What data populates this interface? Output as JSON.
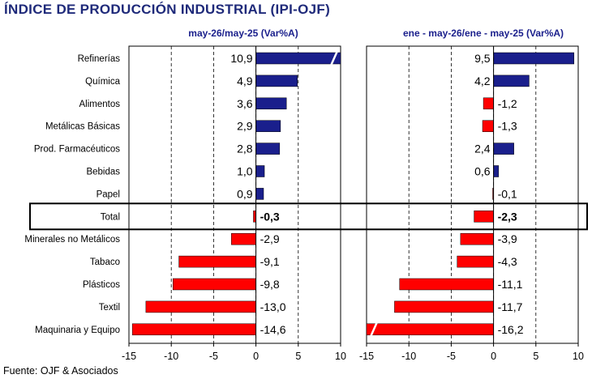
{
  "title": "ÍNDICE DE PRODUCCIÓN INDUSTRIAL (IPI-OJF)",
  "source": "Fuente: OJF & Asociados",
  "colors": {
    "positive": "#1a1f8c",
    "negative": "#ff0000",
    "title": "#1f2a7a",
    "subtitle": "#1a1f8c"
  },
  "highlight_category": "Total",
  "chart_data": {
    "type": "bar",
    "orientation": "horizontal",
    "categories": [
      "Refinerías",
      "Química",
      "Alimentos",
      "Metálicas Básicas",
      "Prod. Farmacéuticos",
      "Bebidas",
      "Papel",
      "Total",
      "Minerales no Metálicos",
      "Tabaco",
      "Plásticos",
      "Textil",
      "Maquinaria y Equipo"
    ],
    "panels": [
      {
        "subtitle": "may-26/may-25  (Var%A)",
        "values": [
          10.9,
          4.9,
          3.6,
          2.9,
          2.8,
          1.0,
          0.9,
          -0.3,
          -2.9,
          -9.1,
          -9.8,
          -13.0,
          -14.6
        ],
        "labels": [
          "10,9",
          "4,9",
          "3,6",
          "2,9",
          "2,8",
          "1,0",
          "0,9",
          "-0,3",
          "-2,9",
          "-9,1",
          "-9,8",
          "-13,0",
          "-14,6"
        ],
        "xlim": [
          -15,
          10
        ],
        "xticks": [
          "-15",
          "-10",
          "-5",
          "0",
          "5",
          "10"
        ]
      },
      {
        "subtitle": "ene - may-26/ene - may-25  (Var%A)",
        "values": [
          9.5,
          4.2,
          -1.2,
          -1.3,
          2.4,
          0.6,
          -0.1,
          -2.3,
          -3.9,
          -4.3,
          -11.1,
          -11.7,
          -16.2
        ],
        "labels": [
          "9,5",
          "4,2",
          "-1,2",
          "-1,3",
          "2,4",
          "0,6",
          "-0,1",
          "-2,3",
          "-3,9",
          "-4,3",
          "-11,1",
          "-11,7",
          "-16,2"
        ],
        "xlim": [
          -15,
          10
        ],
        "xticks": [
          "-15",
          "-10",
          "-5",
          "0",
          "5",
          "10"
        ]
      }
    ]
  }
}
